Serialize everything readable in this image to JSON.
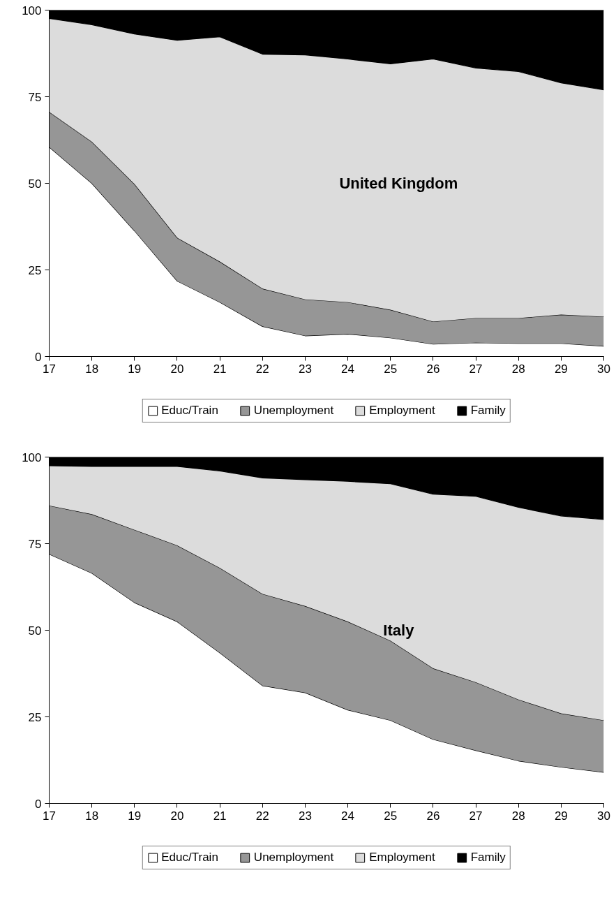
{
  "chart_data": [
    {
      "type": "area",
      "stacked": true,
      "annotations": [
        "United Kingdom"
      ],
      "x": [
        17,
        18,
        19,
        20,
        21,
        22,
        23,
        24,
        25,
        26,
        27,
        28,
        29,
        30
      ],
      "xlim": [
        17,
        30
      ],
      "xticks": [
        17,
        18,
        19,
        20,
        21,
        22,
        23,
        24,
        25,
        26,
        27,
        28,
        29,
        30
      ],
      "ylim": [
        0,
        100
      ],
      "yticks": [
        0,
        25,
        50,
        75,
        100
      ],
      "legend": "bottom",
      "series": [
        {
          "name": "Educ/Train",
          "color": "#ffffff",
          "values": [
            60.5,
            50,
            36.3,
            21.8,
            15.7,
            8.7,
            6,
            6.5,
            5.4,
            3.6,
            4,
            3.8,
            3.8,
            3
          ]
        },
        {
          "name": "Unemployment",
          "color": "#969696",
          "values": [
            10.1,
            12,
            13.5,
            12.5,
            11.7,
            10.9,
            10.5,
            9.2,
            8.1,
            6.5,
            7.1,
            7.3,
            8.3,
            8.5
          ]
        },
        {
          "name": "Employment",
          "color": "#dcdcdc",
          "values": [
            27,
            33.8,
            43.3,
            57,
            64.9,
            67.7,
            70.6,
            70.2,
            71,
            75.8,
            72.2,
            71.2,
            66.9,
            65.5
          ]
        },
        {
          "name": "Family",
          "color": "#000000",
          "values": [
            2.4,
            4.2,
            6.9,
            8.7,
            7.7,
            12.7,
            12.9,
            14.1,
            15.5,
            14.1,
            16.7,
            17.7,
            21,
            23
          ]
        }
      ]
    },
    {
      "type": "area",
      "stacked": true,
      "annotations": [
        "Italy"
      ],
      "x": [
        17,
        18,
        19,
        20,
        21,
        22,
        23,
        24,
        25,
        26,
        27,
        28,
        29,
        30
      ],
      "xlim": [
        17,
        30
      ],
      "xticks": [
        17,
        18,
        19,
        20,
        21,
        22,
        23,
        24,
        25,
        26,
        27,
        28,
        29,
        30
      ],
      "ylim": [
        0,
        100
      ],
      "yticks": [
        0,
        25,
        50,
        75,
        100
      ],
      "legend": "bottom",
      "series": [
        {
          "name": "Educ/Train",
          "color": "#ffffff",
          "values": [
            72,
            66.5,
            58,
            52.5,
            43.5,
            34,
            32,
            27,
            24,
            18.5,
            15.3,
            12.3,
            10.5,
            9
          ]
        },
        {
          "name": "Unemployment",
          "color": "#969696",
          "values": [
            14,
            17,
            21,
            22,
            24.5,
            26.5,
            25,
            25.5,
            23,
            20.5,
            19.7,
            17.7,
            15.5,
            15
          ]
        },
        {
          "name": "Employment",
          "color": "#dcdcdc",
          "values": [
            11.5,
            13.8,
            18.3,
            22.8,
            28,
            33.5,
            36.5,
            40.5,
            45.3,
            50.3,
            53.7,
            55.5,
            57,
            58
          ]
        },
        {
          "name": "Family",
          "color": "#000000",
          "values": [
            2.5,
            2.7,
            2.7,
            2.7,
            4,
            6,
            6.5,
            7,
            7.7,
            10.7,
            11.3,
            14.5,
            17,
            18
          ]
        }
      ]
    }
  ]
}
